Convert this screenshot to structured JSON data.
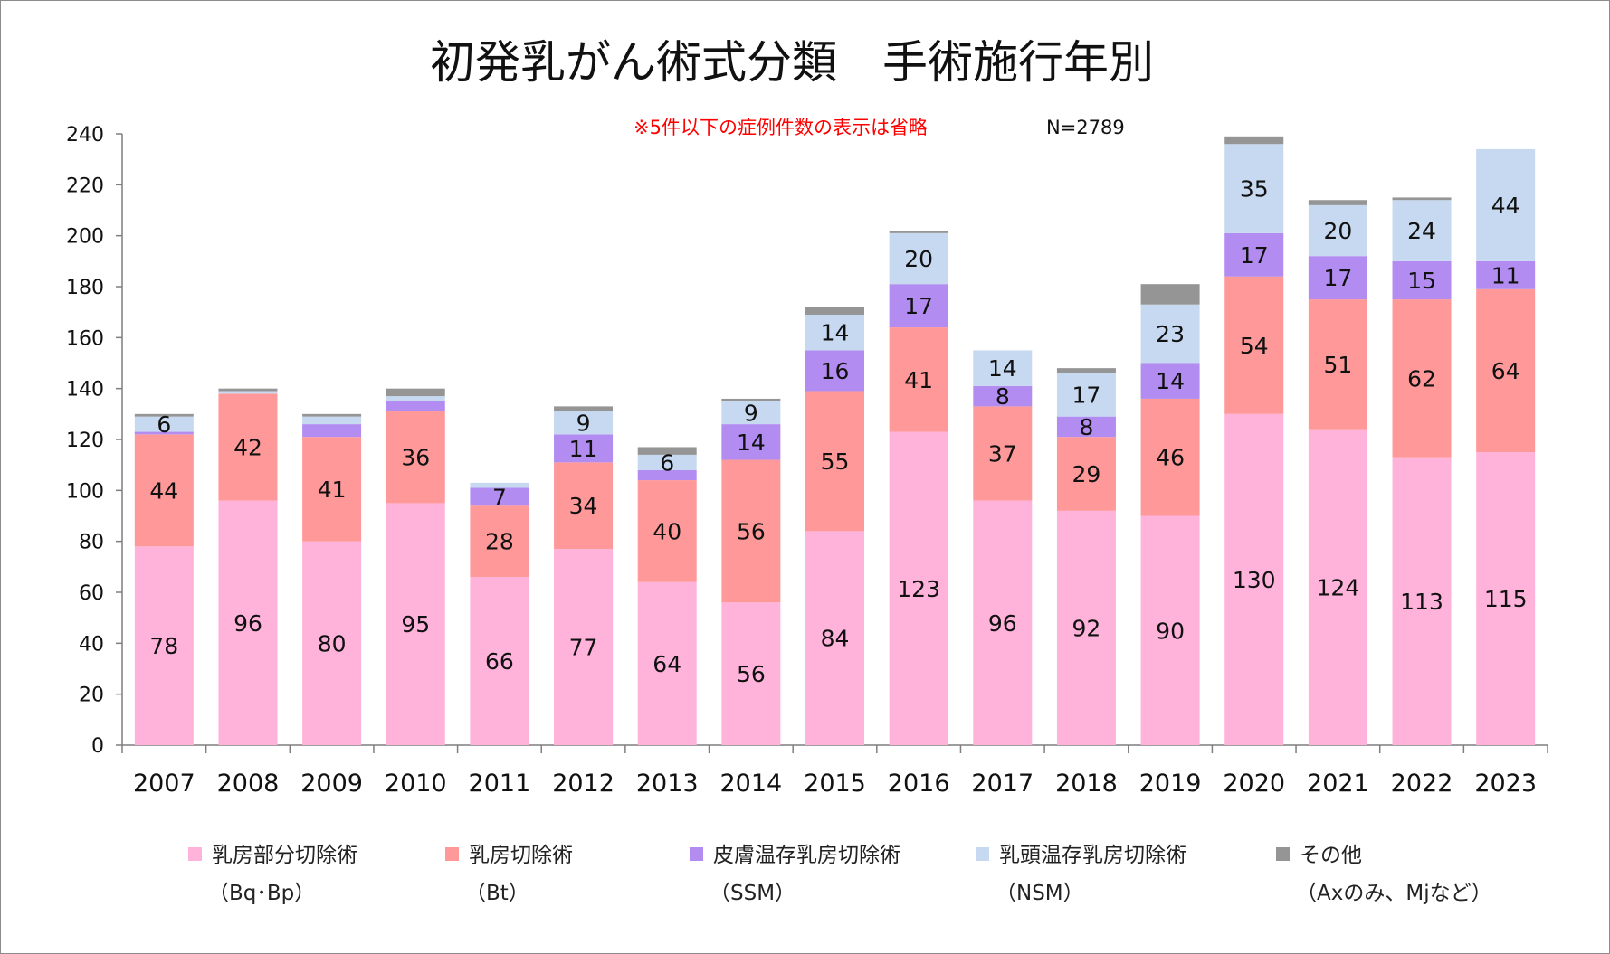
{
  "chart_data": {
    "type": "bar",
    "stacked": true,
    "title": "初発乳がん術式分類　手術施行年別",
    "note": "※5件以下の症例件数の表示は省略",
    "n_label": "N=2789",
    "categories": [
      "2007",
      "2008",
      "2009",
      "2010",
      "2011",
      "2012",
      "2013",
      "2014",
      "2015",
      "2016",
      "2017",
      "2018",
      "2019",
      "2020",
      "2021",
      "2022",
      "2023"
    ],
    "ylim": [
      0,
      240
    ],
    "yticks": [
      0,
      20,
      40,
      60,
      80,
      100,
      120,
      140,
      160,
      180,
      200,
      220,
      240
    ],
    "grid": false,
    "legend_position": "bottom",
    "series": [
      {
        "name": "乳房部分切除術",
        "sub": "（Bq･Bp）",
        "color": "#FFB3DA",
        "values": [
          78,
          96,
          80,
          95,
          66,
          77,
          64,
          56,
          84,
          123,
          96,
          92,
          90,
          130,
          124,
          113,
          115
        ],
        "labels": [
          "78",
          "96",
          "80",
          "95",
          "66",
          "77",
          "64",
          "56",
          "84",
          "123",
          "96",
          "92",
          "90",
          "130",
          "124",
          "113",
          "115"
        ]
      },
      {
        "name": "乳房切除術",
        "sub": "（Bt）",
        "color": "#FF9999",
        "values": [
          44,
          42,
          41,
          36,
          28,
          34,
          40,
          56,
          55,
          41,
          37,
          29,
          46,
          54,
          51,
          62,
          64
        ],
        "labels": [
          "44",
          "42",
          "41",
          "36",
          "28",
          "34",
          "40",
          "56",
          "55",
          "41",
          "37",
          "29",
          "46",
          "54",
          "51",
          "62",
          "64"
        ]
      },
      {
        "name": "皮膚温存乳房切除術",
        "sub": "（SSM）",
        "color": "#B28CF0",
        "values": [
          1,
          0,
          5,
          4,
          7,
          11,
          4,
          14,
          16,
          17,
          8,
          8,
          14,
          17,
          17,
          15,
          11
        ],
        "labels": [
          "",
          "",
          "",
          "",
          "7",
          "11",
          "",
          "14",
          "16",
          "17",
          "8",
          "8",
          "14",
          "17",
          "17",
          "15",
          "11"
        ]
      },
      {
        "name": "乳頭温存乳房切除術",
        "sub": "（NSM）",
        "color": "#C6D9F0",
        "values": [
          6,
          1,
          3,
          2,
          2,
          9,
          6,
          9,
          14,
          20,
          14,
          17,
          23,
          35,
          20,
          24,
          44
        ],
        "labels": [
          "6",
          "",
          "",
          "",
          "",
          "9",
          "6",
          "9",
          "14",
          "20",
          "14",
          "17",
          "23",
          "35",
          "20",
          "24",
          "44"
        ]
      },
      {
        "name": "その他",
        "sub": "（Axのみ、Mjなど）",
        "color": "#959595",
        "values": [
          1,
          1,
          1,
          3,
          0,
          2,
          3,
          1,
          3,
          1,
          0,
          2,
          8,
          3,
          2,
          1,
          0
        ],
        "labels": [
          "",
          "",
          "",
          "",
          "",
          "",
          "",
          "",
          "",
          "",
          "",
          "",
          "",
          "",
          "",
          "",
          ""
        ]
      }
    ]
  }
}
